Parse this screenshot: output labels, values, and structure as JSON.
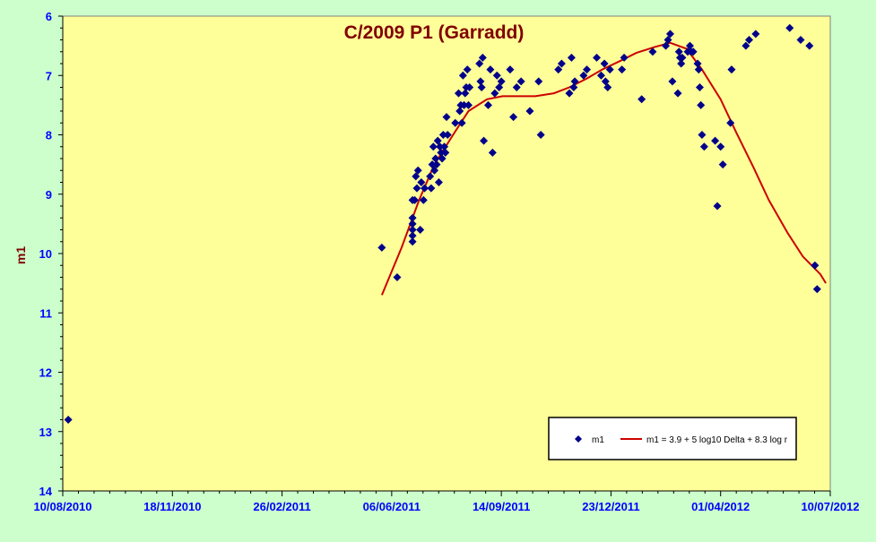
{
  "chart_data": {
    "type": "scatter",
    "title": "C/2009 P1 (Garradd)",
    "xlabel": "",
    "ylabel": "m1",
    "ylim": [
      14,
      6
    ],
    "y_inverted": true,
    "yticks": [
      "6",
      "7",
      "8",
      "9",
      "10",
      "11",
      "12",
      "13",
      "14"
    ],
    "xlim": [
      "2010-08-10",
      "2012-07-10"
    ],
    "xtick_labels": [
      "10/08/2010",
      "18/11/2010",
      "26/02/2011",
      "06/06/2011",
      "14/09/2011",
      "23/12/2011",
      "01/04/2012",
      "10/07/2012"
    ],
    "grid": false,
    "legend_position": "bottom-right",
    "colors": {
      "page_background": "#ccffcc",
      "plot_background": "#ffff99",
      "title": "#800000",
      "axis_label": "#800000",
      "tick_labels": "#0000ff",
      "points": "#00008b",
      "fit_line": "#cc0000"
    },
    "series": [
      {
        "name": "m1",
        "kind": "points",
        "x": [
          "2010-08-15",
          "2011-05-28",
          "2011-06-11",
          "2011-06-25",
          "2011-06-25",
          "2011-06-25",
          "2011-06-25",
          "2011-06-25",
          "2011-06-25",
          "2011-06-27",
          "2011-06-28",
          "2011-06-29",
          "2011-06-30",
          "2011-07-02",
          "2011-07-03",
          "2011-07-05",
          "2011-07-06",
          "2011-07-11",
          "2011-07-12",
          "2011-07-13",
          "2011-07-14",
          "2011-07-15",
          "2011-07-16",
          "2011-07-17",
          "2011-07-18",
          "2011-07-19",
          "2011-07-20",
          "2011-07-21",
          "2011-07-22",
          "2011-07-23",
          "2011-07-24",
          "2011-07-25",
          "2011-07-26",
          "2011-07-27",
          "2011-08-03",
          "2011-08-06",
          "2011-08-07",
          "2011-08-08",
          "2011-08-09",
          "2011-08-10",
          "2011-08-11",
          "2011-08-12",
          "2011-08-13",
          "2011-08-14",
          "2011-08-15",
          "2011-08-16",
          "2011-08-25",
          "2011-08-26",
          "2011-08-27",
          "2011-08-28",
          "2011-08-29",
          "2011-09-02",
          "2011-09-04",
          "2011-09-06",
          "2011-09-08",
          "2011-09-10",
          "2011-09-12",
          "2011-09-14",
          "2011-09-22",
          "2011-09-25",
          "2011-09-28",
          "2011-10-02",
          "2011-10-10",
          "2011-10-18",
          "2011-10-20",
          "2011-11-05",
          "2011-11-08",
          "2011-11-15",
          "2011-11-17",
          "2011-11-19",
          "2011-11-20",
          "2011-11-28",
          "2011-12-01",
          "2011-12-10",
          "2011-12-14",
          "2011-12-17",
          "2011-12-18",
          "2011-12-20",
          "2011-12-22",
          "2012-01-02",
          "2012-01-04",
          "2012-01-20",
          "2012-01-30",
          "2012-02-11",
          "2012-02-13",
          "2012-02-15",
          "2012-02-17",
          "2012-02-22",
          "2012-02-23",
          "2012-02-24",
          "2012-02-25",
          "2012-02-26",
          "2012-03-02",
          "2012-03-04",
          "2012-03-05",
          "2012-03-07",
          "2012-03-11",
          "2012-03-12",
          "2012-03-13",
          "2012-03-14",
          "2012-03-15",
          "2012-03-17",
          "2012-03-27",
          "2012-03-29",
          "2012-04-01",
          "2012-04-03",
          "2012-04-10",
          "2012-04-11",
          "2012-04-24",
          "2012-04-27",
          "2012-05-03",
          "2012-06-03",
          "2012-06-13",
          "2012-06-21",
          "2012-06-26",
          "2012-06-28"
        ],
        "y": [
          12.8,
          9.9,
          10.4,
          9.1,
          9.4,
          9.5,
          9.6,
          9.7,
          9.8,
          9.1,
          8.7,
          8.9,
          8.6,
          9.6,
          8.8,
          9.1,
          8.9,
          8.7,
          8.9,
          8.5,
          8.2,
          8.6,
          8.4,
          8.5,
          8.1,
          8.8,
          8.2,
          8.3,
          8.4,
          8.0,
          8.2,
          8.3,
          7.7,
          8.0,
          7.8,
          7.3,
          7.6,
          7.5,
          7.8,
          7.0,
          7.5,
          7.3,
          7.2,
          6.9,
          7.5,
          7.2,
          6.8,
          7.1,
          7.2,
          6.7,
          8.1,
          7.5,
          6.9,
          8.3,
          7.3,
          7.0,
          7.2,
          7.1,
          6.9,
          7.7,
          7.2,
          7.1,
          7.6,
          7.1,
          8.0,
          6.9,
          6.8,
          7.3,
          6.7,
          7.2,
          7.1,
          7.0,
          6.9,
          6.7,
          7.0,
          6.8,
          7.1,
          7.2,
          6.9,
          6.9,
          6.7,
          7.4,
          6.6,
          6.5,
          6.4,
          6.3,
          7.1,
          7.3,
          6.6,
          6.7,
          6.8,
          6.7,
          6.6,
          6.5,
          6.6,
          6.6,
          6.8,
          6.9,
          7.2,
          7.5,
          8.0,
          8.2,
          8.1,
          9.2,
          8.2,
          8.5,
          7.8,
          6.9,
          6.5,
          6.4,
          6.3,
          6.2,
          6.4,
          6.5,
          10.2,
          10.6
        ]
      },
      {
        "name": "m1 = 3.9 + 5 log10 Delta + 8.3 log r",
        "kind": "line",
        "x": [
          "2011-05-28",
          "2011-06-15",
          "2011-07-01",
          "2011-07-15",
          "2011-08-01",
          "2011-08-15",
          "2011-09-01",
          "2011-09-15",
          "2011-10-01",
          "2011-10-15",
          "2011-11-01",
          "2011-11-15",
          "2011-12-01",
          "2011-12-15",
          "2012-01-01",
          "2012-01-15",
          "2012-02-01",
          "2012-02-15",
          "2012-03-01",
          "2012-03-15",
          "2012-04-01",
          "2012-04-15",
          "2012-05-01",
          "2012-05-15",
          "2012-06-01",
          "2012-06-15",
          "2012-07-01",
          "2012-07-06"
        ],
        "y": [
          10.7,
          9.9,
          9.1,
          8.5,
          8.0,
          7.6,
          7.4,
          7.35,
          7.35,
          7.35,
          7.3,
          7.2,
          7.05,
          6.9,
          6.75,
          6.62,
          6.52,
          6.45,
          6.55,
          6.9,
          7.4,
          7.95,
          8.55,
          9.1,
          9.65,
          10.05,
          10.35,
          10.5
        ]
      }
    ]
  }
}
